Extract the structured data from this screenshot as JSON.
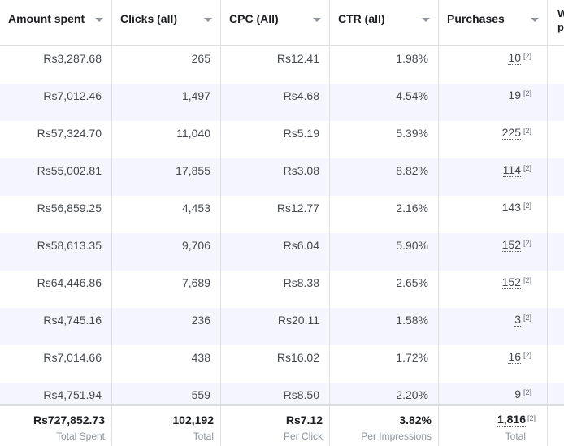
{
  "columns": [
    {
      "label": "Amount spent"
    },
    {
      "label": "Clicks (all)"
    },
    {
      "label": "CPC (All)"
    },
    {
      "label": "CTR (all)"
    },
    {
      "label": "Purchases"
    },
    {
      "label": "W\npu"
    }
  ],
  "rows": [
    {
      "amount": "Rs3,287.68",
      "clicks": "265",
      "cpc": "Rs12.41",
      "ctr": "1.98%",
      "purchases": "10",
      "ref": "[2]"
    },
    {
      "amount": "Rs7,012.46",
      "clicks": "1,497",
      "cpc": "Rs4.68",
      "ctr": "4.54%",
      "purchases": "19",
      "ref": "[2]"
    },
    {
      "amount": "Rs57,324.70",
      "clicks": "11,040",
      "cpc": "Rs5.19",
      "ctr": "5.39%",
      "purchases": "225",
      "ref": "[2]"
    },
    {
      "amount": "Rs55,002.81",
      "clicks": "17,855",
      "cpc": "Rs3.08",
      "ctr": "8.82%",
      "purchases": "114",
      "ref": "[2]"
    },
    {
      "amount": "Rs56,859.25",
      "clicks": "4,453",
      "cpc": "Rs12.77",
      "ctr": "2.16%",
      "purchases": "143",
      "ref": "[2]"
    },
    {
      "amount": "Rs58,613.35",
      "clicks": "9,706",
      "cpc": "Rs6.04",
      "ctr": "5.90%",
      "purchases": "152",
      "ref": "[2]"
    },
    {
      "amount": "Rs64,446.86",
      "clicks": "7,689",
      "cpc": "Rs8.38",
      "ctr": "2.65%",
      "purchases": "152",
      "ref": "[2]"
    },
    {
      "amount": "Rs4,745.16",
      "clicks": "236",
      "cpc": "Rs20.11",
      "ctr": "1.58%",
      "purchases": "3",
      "ref": "[2]"
    },
    {
      "amount": "Rs7,014.66",
      "clicks": "438",
      "cpc": "Rs16.02",
      "ctr": "1.72%",
      "purchases": "16",
      "ref": "[2]"
    },
    {
      "amount": "Rs4,751.94",
      "clicks": "559",
      "cpc": "Rs8.50",
      "ctr": "2.20%",
      "purchases": "9",
      "ref": "[2]"
    }
  ],
  "totals": {
    "amount": "Rs727,852.73",
    "amount_label": "Total Spent",
    "clicks": "102,192",
    "clicks_label": "Total",
    "cpc": "Rs7.12",
    "cpc_label": "Per Click",
    "ctr": "3.82%",
    "ctr_label": "Per Impressions",
    "purchases": "1,816",
    "purchases_ref": "[2]",
    "purchases_label": "Total"
  },
  "colors": {
    "alt_row": "#f5f6fd",
    "border": "#dddfe2"
  }
}
